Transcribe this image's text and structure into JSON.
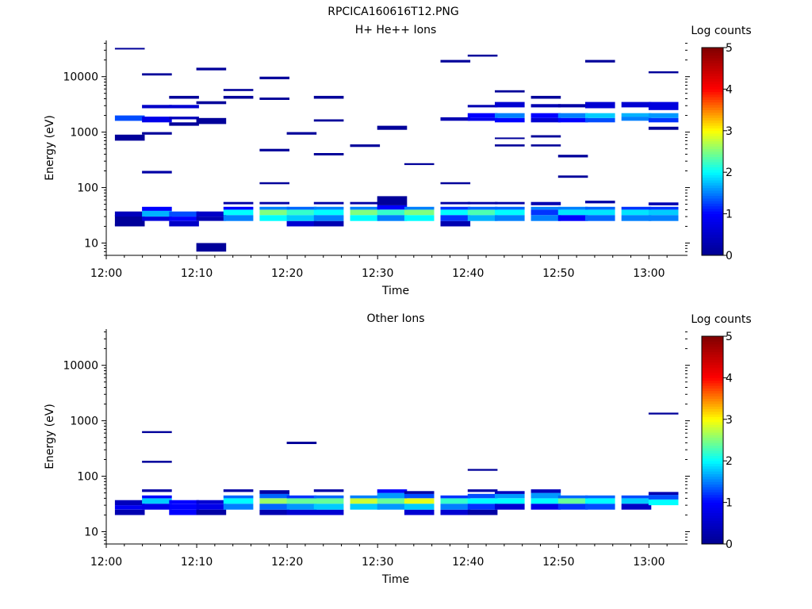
{
  "figure_title": "RPCICA160616T12.PNG",
  "colors": {
    "colormap": [
      "#00008f",
      "#0000ff",
      "#00ffff",
      "#ffff00",
      "#ff0000",
      "#800000"
    ],
    "axes": "#000000",
    "background": "#ffffff"
  },
  "chart_data": [
    {
      "type": "heatmap",
      "title": "H+ He++ Ions",
      "xlabel": "Time",
      "ylabel": "Energy (eV)",
      "xticks": [
        "12:00",
        "12:10",
        "12:20",
        "12:30",
        "12:40",
        "12:50",
        "13:00"
      ],
      "xlim": [
        "12:00",
        "13:04"
      ],
      "yscale": "log",
      "yticks": [
        "10",
        "100",
        "1000",
        "10000"
      ],
      "ylim": [
        6,
        45000
      ],
      "colorbar": {
        "label": "Log counts",
        "ticks": [
          "0",
          "1",
          "2",
          "3",
          "4",
          "5"
        ],
        "range": [
          0,
          5
        ]
      },
      "cells": [
        [
          "12:01",
          25,
          22,
          0.5
        ],
        [
          "12:01",
          20,
          32,
          0.1
        ],
        [
          "12:01",
          30,
          37,
          0.4
        ],
        [
          "12:01",
          700,
          900,
          0.1
        ],
        [
          "12:01",
          1600,
          2000,
          1.3
        ],
        [
          "12:01",
          31000,
          33000,
          0.1
        ],
        [
          "12:04",
          25,
          30,
          0.7
        ],
        [
          "12:04",
          30,
          38,
          1.7
        ],
        [
          "12:04",
          38,
          45,
          1.0
        ],
        [
          "12:04",
          900,
          1000,
          0.1
        ],
        [
          "12:04",
          180,
          200,
          0.2
        ],
        [
          "12:04",
          1500,
          1900,
          0.8
        ],
        [
          "12:04",
          2700,
          3100,
          0.5
        ],
        [
          "12:04",
          10500,
          11500,
          0.1
        ],
        [
          "12:07",
          20,
          25,
          0.5
        ],
        [
          "12:07",
          25,
          30,
          1.0
        ],
        [
          "12:07",
          30,
          37,
          1.3
        ],
        [
          "12:07",
          1300,
          1500,
          0.1
        ],
        [
          "12:07",
          1700,
          1900,
          0.4
        ],
        [
          "12:07",
          2700,
          3100,
          0.6
        ],
        [
          "12:07",
          4000,
          4500,
          0.1
        ],
        [
          "12:10",
          7,
          10,
          0.1
        ],
        [
          "12:10",
          25,
          30,
          0.3
        ],
        [
          "12:10",
          30,
          37,
          0.5
        ],
        [
          "12:10",
          1400,
          1800,
          0.1
        ],
        [
          "12:10",
          3200,
          3600,
          0.1
        ],
        [
          "12:10",
          13000,
          14500,
          0.1
        ],
        [
          "12:13",
          25,
          32,
          1.5
        ],
        [
          "12:13",
          32,
          40,
          2.0
        ],
        [
          "12:13",
          40,
          45,
          1.0
        ],
        [
          "12:13",
          50,
          55,
          0.2
        ],
        [
          "12:13",
          4000,
          4500,
          0.1
        ],
        [
          "12:13",
          5500,
          6000,
          0.1
        ],
        [
          "12:17",
          25,
          32,
          2.0
        ],
        [
          "12:17",
          32,
          40,
          2.5
        ],
        [
          "12:17",
          40,
          45,
          1.5
        ],
        [
          "12:17",
          50,
          55,
          0.2
        ],
        [
          "12:17",
          115,
          125,
          0.1
        ],
        [
          "12:17",
          450,
          500,
          0.1
        ],
        [
          "12:17",
          3800,
          4200,
          0.1
        ],
        [
          "12:17",
          9000,
          10000,
          0.1
        ],
        [
          "12:20",
          20,
          25,
          0.6
        ],
        [
          "12:20",
          25,
          32,
          1.8
        ],
        [
          "12:20",
          32,
          40,
          2.2
        ],
        [
          "12:20",
          40,
          45,
          1.4
        ],
        [
          "12:20",
          900,
          1000,
          0.1
        ],
        [
          "12:23",
          20,
          25,
          0.3
        ],
        [
          "12:23",
          25,
          32,
          1.5
        ],
        [
          "12:23",
          32,
          40,
          2.0
        ],
        [
          "12:23",
          40,
          45,
          1.5
        ],
        [
          "12:23",
          50,
          55,
          0.2
        ],
        [
          "12:23",
          380,
          420,
          0.1
        ],
        [
          "12:23",
          1550,
          1700,
          0.1
        ],
        [
          "12:23",
          4000,
          4500,
          0.1
        ],
        [
          "12:27",
          25,
          32,
          2.0
        ],
        [
          "12:27",
          32,
          40,
          2.5
        ],
        [
          "12:27",
          40,
          45,
          1.5
        ],
        [
          "12:27",
          50,
          55,
          0.2
        ],
        [
          "12:27",
          540,
          600,
          0.1
        ],
        [
          "12:30",
          25,
          32,
          1.5
        ],
        [
          "12:30",
          32,
          40,
          2.2
        ],
        [
          "12:30",
          40,
          48,
          1.0
        ],
        [
          "12:30",
          48,
          70,
          0.1
        ],
        [
          "12:30",
          1100,
          1300,
          0.1
        ],
        [
          "12:33",
          25,
          32,
          2.0
        ],
        [
          "12:33",
          32,
          40,
          2.5
        ],
        [
          "12:33",
          40,
          45,
          1.5
        ],
        [
          "12:33",
          255,
          275,
          0.1
        ],
        [
          "12:37",
          20,
          25,
          0.3
        ],
        [
          "12:37",
          25,
          32,
          1.2
        ],
        [
          "12:37",
          32,
          40,
          2.0
        ],
        [
          "12:37",
          40,
          45,
          1.2
        ],
        [
          "12:37",
          50,
          55,
          0.2
        ],
        [
          "12:37",
          115,
          125,
          0.1
        ],
        [
          "12:37",
          1600,
          1850,
          0.3
        ],
        [
          "12:37",
          18000,
          20000,
          0.1
        ],
        [
          "12:40",
          25,
          32,
          1.7
        ],
        [
          "12:40",
          32,
          40,
          2.3
        ],
        [
          "12:40",
          40,
          45,
          1.4
        ],
        [
          "12:40",
          50,
          55,
          0.2
        ],
        [
          "12:40",
          1600,
          1800,
          0.8
        ],
        [
          "12:40",
          1800,
          2200,
          1.0
        ],
        [
          "12:40",
          2800,
          3100,
          0.3
        ],
        [
          "12:40",
          23000,
          25000,
          0.1
        ],
        [
          "12:43",
          25,
          32,
          1.5
        ],
        [
          "12:43",
          32,
          40,
          2.0
        ],
        [
          "12:43",
          40,
          45,
          1.4
        ],
        [
          "12:43",
          50,
          55,
          0.2
        ],
        [
          "12:43",
          550,
          600,
          0.1
        ],
        [
          "12:43",
          750,
          800,
          0.1
        ],
        [
          "12:43",
          1500,
          1800,
          1.0
        ],
        [
          "12:43",
          1800,
          2200,
          1.5
        ],
        [
          "12:43",
          2800,
          3500,
          0.6
        ],
        [
          "12:43",
          5200,
          5700,
          0.1
        ],
        [
          "12:47",
          25,
          32,
          1.5
        ],
        [
          "12:47",
          32,
          40,
          1.2
        ],
        [
          "12:47",
          40,
          45,
          1.5
        ],
        [
          "12:47",
          48,
          55,
          0.3
        ],
        [
          "12:47",
          550,
          600,
          0.1
        ],
        [
          "12:47",
          800,
          880,
          0.1
        ],
        [
          "12:47",
          1500,
          1800,
          0.6
        ],
        [
          "12:47",
          1800,
          2200,
          1.0
        ],
        [
          "12:47",
          2800,
          3200,
          0.3
        ],
        [
          "12:47",
          4000,
          4500,
          0.1
        ],
        [
          "12:50",
          25,
          32,
          1.0
        ],
        [
          "12:50",
          32,
          40,
          1.9
        ],
        [
          "12:50",
          40,
          45,
          1.5
        ],
        [
          "12:50",
          150,
          165,
          0.1
        ],
        [
          "12:50",
          350,
          390,
          0.1
        ],
        [
          "12:50",
          1500,
          1800,
          1.0
        ],
        [
          "12:50",
          1800,
          2200,
          1.5
        ],
        [
          "12:50",
          2800,
          3200,
          0.2
        ],
        [
          "12:53",
          25,
          32,
          1.4
        ],
        [
          "12:53",
          32,
          40,
          1.9
        ],
        [
          "12:53",
          40,
          45,
          1.4
        ],
        [
          "12:53",
          52,
          58,
          0.2
        ],
        [
          "12:53",
          1500,
          1800,
          1.3
        ],
        [
          "12:53",
          1800,
          2200,
          1.8
        ],
        [
          "12:53",
          2700,
          3500,
          0.6
        ],
        [
          "12:53",
          18000,
          20000,
          0.1
        ],
        [
          "12:57",
          25,
          32,
          1.5
        ],
        [
          "12:57",
          32,
          40,
          1.9
        ],
        [
          "12:57",
          40,
          45,
          1.2
        ],
        [
          "12:57",
          1600,
          1900,
          1.5
        ],
        [
          "12:57",
          1900,
          2200,
          1.7
        ],
        [
          "12:57",
          2800,
          3500,
          0.6
        ],
        [
          "13:00",
          25,
          32,
          1.5
        ],
        [
          "13:00",
          32,
          40,
          1.8
        ],
        [
          "13:00",
          40,
          45,
          1.2
        ],
        [
          "13:00",
          48,
          54,
          0.3
        ],
        [
          "13:00",
          1100,
          1250,
          0.1
        ],
        [
          "13:00",
          1500,
          1800,
          1.2
        ],
        [
          "13:00",
          1800,
          2200,
          1.6
        ],
        [
          "13:00",
          2500,
          3500,
          0.7
        ],
        [
          "13:00",
          11500,
          12500,
          0.1
        ]
      ]
    },
    {
      "type": "heatmap",
      "title": "Other Ions",
      "xlabel": "Time",
      "ylabel": "Energy (eV)",
      "xticks": [
        "12:00",
        "12:10",
        "12:20",
        "12:30",
        "12:40",
        "12:50",
        "13:00"
      ],
      "xlim": [
        "12:00",
        "13:04"
      ],
      "yscale": "log",
      "yticks": [
        "10",
        "100",
        "1000",
        "10000"
      ],
      "ylim": [
        6,
        45000
      ],
      "colorbar": {
        "label": "Log counts",
        "ticks": [
          "0",
          "1",
          "2",
          "3",
          "4",
          "5"
        ],
        "range": [
          0,
          5
        ]
      },
      "cells": [
        [
          "12:01",
          20,
          25,
          0.3
        ],
        [
          "12:01",
          25,
          30,
          0.9
        ],
        [
          "12:01",
          30,
          37,
          0.4
        ],
        [
          "12:04",
          25,
          32,
          0.8
        ],
        [
          "12:04",
          32,
          40,
          1.8
        ],
        [
          "12:04",
          40,
          45,
          1.0
        ],
        [
          "12:04",
          52,
          58,
          0.2
        ],
        [
          "12:04",
          175,
          190,
          0.1
        ],
        [
          "12:04",
          600,
          650,
          0.1
        ],
        [
          "12:07",
          20,
          25,
          1.0
        ],
        [
          "12:07",
          25,
          32,
          1.0
        ],
        [
          "12:07",
          32,
          37,
          1.0
        ],
        [
          "12:10",
          20,
          25,
          0.2
        ],
        [
          "12:10",
          25,
          32,
          0.8
        ],
        [
          "12:10",
          32,
          37,
          0.6
        ],
        [
          "12:13",
          25,
          32,
          1.5
        ],
        [
          "12:13",
          32,
          40,
          2.0
        ],
        [
          "12:13",
          40,
          45,
          1.4
        ],
        [
          "12:13",
          52,
          58,
          0.2
        ],
        [
          "12:17",
          20,
          25,
          0.3
        ],
        [
          "12:17",
          25,
          32,
          1.4
        ],
        [
          "12:17",
          32,
          40,
          2.6
        ],
        [
          "12:17",
          40,
          48,
          1.4
        ],
        [
          "12:17",
          48,
          56,
          0.2
        ],
        [
          "12:20",
          20,
          25,
          0.6
        ],
        [
          "12:20",
          25,
          32,
          1.6
        ],
        [
          "12:20",
          32,
          40,
          2.4
        ],
        [
          "12:20",
          40,
          45,
          1.2
        ],
        [
          "12:20",
          380,
          420,
          0.1
        ],
        [
          "12:23",
          20,
          25,
          0.6
        ],
        [
          "12:23",
          25,
          32,
          1.8
        ],
        [
          "12:23",
          32,
          40,
          2.4
        ],
        [
          "12:23",
          40,
          45,
          1.4
        ],
        [
          "12:23",
          52,
          58,
          0.2
        ],
        [
          "12:27",
          25,
          32,
          1.8
        ],
        [
          "12:27",
          32,
          40,
          2.8
        ],
        [
          "12:27",
          40,
          45,
          1.5
        ],
        [
          "12:30",
          25,
          32,
          1.6
        ],
        [
          "12:30",
          32,
          40,
          2.4
        ],
        [
          "12:30",
          40,
          50,
          1.6
        ],
        [
          "12:30",
          50,
          58,
          1.0
        ],
        [
          "12:33",
          20,
          25,
          0.6
        ],
        [
          "12:33",
          25,
          32,
          1.8
        ],
        [
          "12:33",
          32,
          40,
          2.9
        ],
        [
          "12:33",
          40,
          48,
          1.3
        ],
        [
          "12:33",
          48,
          54,
          0.2
        ],
        [
          "12:37",
          20,
          25,
          0.6
        ],
        [
          "12:37",
          25,
          32,
          1.5
        ],
        [
          "12:37",
          32,
          40,
          2.2
        ],
        [
          "12:37",
          40,
          45,
          1.2
        ],
        [
          "12:40",
          20,
          25,
          0.2
        ],
        [
          "12:40",
          25,
          32,
          1.2
        ],
        [
          "12:40",
          32,
          40,
          2.0
        ],
        [
          "12:40",
          40,
          48,
          1.3
        ],
        [
          "12:40",
          52,
          58,
          0.2
        ],
        [
          "12:40",
          125,
          135,
          0.1
        ],
        [
          "12:43",
          25,
          32,
          0.6
        ],
        [
          "12:43",
          32,
          40,
          2.0
        ],
        [
          "12:43",
          40,
          48,
          1.6
        ],
        [
          "12:43",
          48,
          54,
          0.4
        ],
        [
          "12:47",
          25,
          32,
          0.8
        ],
        [
          "12:47",
          32,
          40,
          2.0
        ],
        [
          "12:47",
          40,
          50,
          1.6
        ],
        [
          "12:47",
          50,
          58,
          0.4
        ],
        [
          "12:50",
          25,
          32,
          1.2
        ],
        [
          "12:50",
          32,
          40,
          2.4
        ],
        [
          "12:50",
          40,
          45,
          1.4
        ],
        [
          "12:53",
          25,
          32,
          1.3
        ],
        [
          "12:53",
          32,
          40,
          2.0
        ],
        [
          "12:53",
          40,
          45,
          1.4
        ],
        [
          "12:57",
          25,
          32,
          0.5
        ],
        [
          "12:57",
          32,
          40,
          1.8
        ],
        [
          "12:57",
          40,
          45,
          1.3
        ],
        [
          "13:00",
          30,
          38,
          2.0
        ],
        [
          "13:00",
          38,
          46,
          1.3
        ],
        [
          "13:00",
          46,
          52,
          0.3
        ],
        [
          "13:00",
          1300,
          1400,
          0.1
        ]
      ]
    }
  ]
}
